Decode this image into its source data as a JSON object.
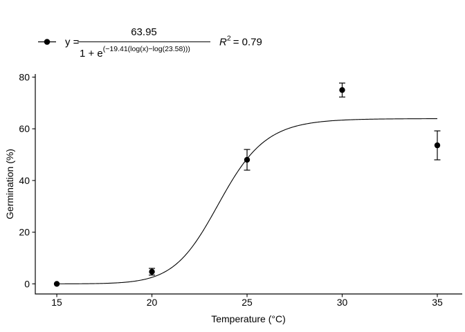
{
  "figure": {
    "background": "#ffffff",
    "ink_color": "#000000"
  },
  "legend": {
    "key": "point-with-line",
    "equation": {
      "lhs": "y =",
      "numerator": "63.95",
      "denominator_prefix": "1 + e",
      "exponent": "(−19.41(log(x)−log(23.58)))",
      "r_label": "R",
      "r_sup": "2",
      "r_value": "= 0.79"
    }
  },
  "chart_data": {
    "type": "scatter",
    "title": "",
    "xlabel": "Temperature (°C)",
    "ylabel": "Germination (%)",
    "x_ticks": [
      15,
      20,
      25,
      30,
      35
    ],
    "y_ticks": [
      0,
      20,
      40,
      60,
      80
    ],
    "xlim": [
      13.87,
      36.31
    ],
    "ylim": [
      -3.9,
      81.2
    ],
    "grid": false,
    "legend_position": "top-left",
    "points": [
      {
        "x": 15,
        "y": 0,
        "error": 0
      },
      {
        "x": 20,
        "y": 4.7,
        "error": 1.3
      },
      {
        "x": 25,
        "y": 48.0,
        "error": 4.0
      },
      {
        "x": 30,
        "y": 75.0,
        "error": 2.7
      },
      {
        "x": 35,
        "y": 53.6,
        "error": 5.6
      }
    ],
    "fit_curve": {
      "model": "log-logistic",
      "asymptote": 63.95,
      "slope": 19.41,
      "midpoint": 23.58,
      "x_range": [
        15,
        35
      ],
      "r_squared": 0.79
    }
  }
}
